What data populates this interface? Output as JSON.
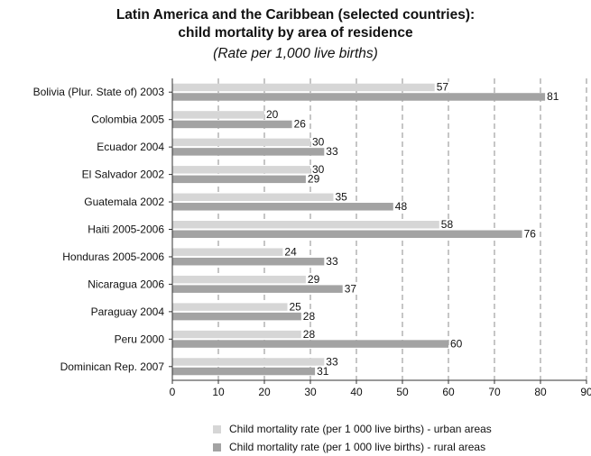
{
  "chart_data": {
    "type": "bar",
    "orientation": "horizontal",
    "title": "Latin America and the Caribbean (selected countries):",
    "title_line2": "child mortality by area of residence",
    "subtitle": "(Rate per 1,000 live births)",
    "categories": [
      "Bolivia (Plur. State of) 2003",
      "Colombia 2005",
      "Ecuador 2004",
      "El Salvador 2002",
      "Guatemala 2002",
      "Haiti 2005-2006",
      "Honduras 2005-2006",
      "Nicaragua 2006",
      "Paraguay 2004",
      "Peru 2000",
      "Dominican Rep. 2007"
    ],
    "series": [
      {
        "name": "Child mortality rate (per 1 000 live births) - urban areas",
        "color": "#d6d6d6",
        "values": [
          57,
          20,
          30,
          30,
          35,
          58,
          24,
          29,
          25,
          28,
          33
        ]
      },
      {
        "name": "Child mortality rate (per 1 000 live births) - rural areas",
        "color": "#a3a3a3",
        "values": [
          81,
          26,
          33,
          29,
          48,
          76,
          33,
          37,
          28,
          60,
          31
        ]
      }
    ],
    "x_ticks": [
      "0",
      "10",
      "20",
      "30",
      "40",
      "50",
      "60",
      "70",
      "80",
      "90"
    ],
    "xlim": [
      0,
      90
    ],
    "grid": "vertical dashed",
    "legend_position": "bottom"
  }
}
